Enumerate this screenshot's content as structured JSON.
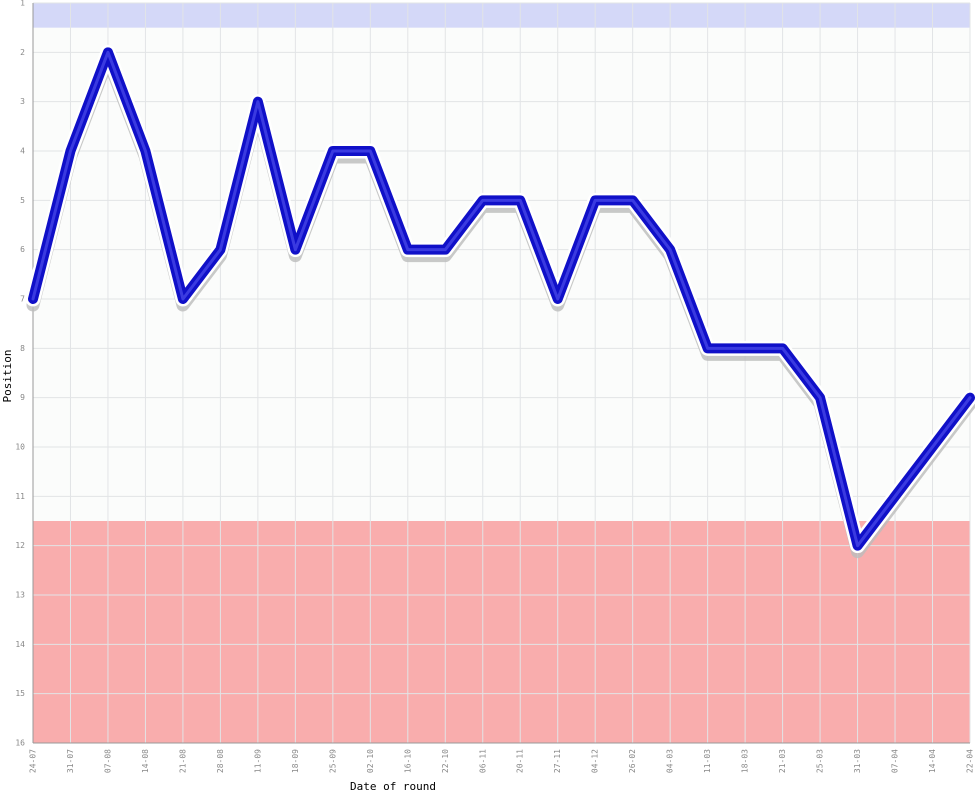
{
  "chart_data": {
    "type": "line",
    "x_label": "Date of round",
    "y_label": "Position",
    "categories": [
      "24-07",
      "31-07",
      "07-08",
      "14-08",
      "21-08",
      "28-08",
      "11-09",
      "18-09",
      "25-09",
      "02-10",
      "16-10",
      "22-10",
      "06-11",
      "20-11",
      "27-11",
      "04-12",
      "26-02",
      "04-03",
      "11-03",
      "18-03",
      "21-03",
      "25-03",
      "31-03",
      "07-04",
      "14-04",
      "22-04"
    ],
    "series": [
      {
        "color": "#1010c8",
        "values": [
          7,
          4,
          2,
          4,
          7,
          6,
          3,
          6,
          4,
          4,
          6,
          6,
          5,
          5,
          7,
          5,
          5,
          6,
          8,
          8,
          8,
          9,
          12,
          11,
          10,
          9
        ]
      }
    ],
    "ylim": [
      1,
      16
    ],
    "inverted": true,
    "yticks": [
      1,
      2,
      3,
      4,
      5,
      6,
      7,
      8,
      9,
      10,
      11,
      12,
      13,
      14,
      15,
      16
    ],
    "grid": true,
    "bands": [
      {
        "from": 1,
        "to": 1.5,
        "color": "#d4d8f8"
      },
      {
        "from": 11.5,
        "to": 16,
        "color": "#f9adad"
      }
    ]
  }
}
